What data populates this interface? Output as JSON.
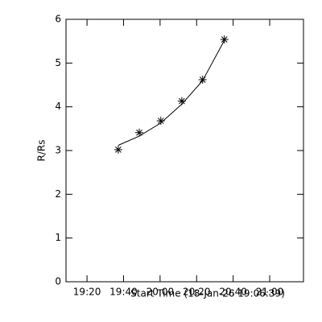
{
  "chart_data": {
    "type": "line",
    "xlabel": "Start Time (18-Jan-26 19:06:39)",
    "ylabel": "R/Rs",
    "xlim": [
      8.5,
      138.5
    ],
    "xticks": [
      {
        "value": 20,
        "label": "19:20"
      },
      {
        "value": 40,
        "label": "19:40"
      },
      {
        "value": 60,
        "label": "20:00"
      },
      {
        "value": 80,
        "label": "20:20"
      },
      {
        "value": 100,
        "label": "20:40"
      },
      {
        "value": 120,
        "label": "21:00"
      }
    ],
    "ylim": [
      0,
      6
    ],
    "yticks": [
      0,
      1,
      2,
      3,
      4,
      5,
      6
    ],
    "color": "#000000",
    "series": [
      {
        "marker": "asterisk",
        "x": [
          37.1,
          48.6,
          60.4,
          71.9,
          83.3,
          95.2
        ],
        "values": [
          3.02,
          3.41,
          3.68,
          4.13,
          4.62,
          5.54
        ]
      },
      {
        "x": [
          37.1,
          48.6,
          60.4,
          71.9,
          83.3,
          95.2
        ],
        "values": [
          3.12,
          3.33,
          3.63,
          4.06,
          4.6,
          5.52
        ]
      }
    ]
  }
}
